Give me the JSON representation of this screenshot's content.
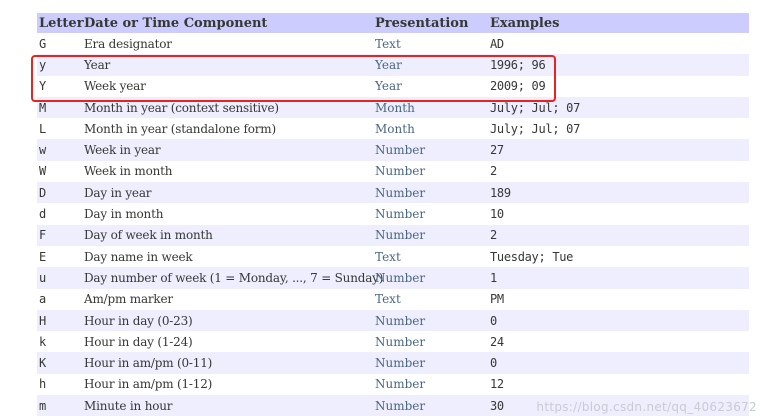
{
  "table": {
    "headers": [
      "Letter",
      "Date or Time Component",
      "Presentation",
      "Examples"
    ],
    "rows": [
      {
        "letter": "G",
        "component": "Era designator",
        "presentation": "Text",
        "examples": "AD"
      },
      {
        "letter": "y",
        "component": "Year",
        "presentation": "Year",
        "examples": "1996; 96"
      },
      {
        "letter": "Y",
        "component": "Week year",
        "presentation": "Year",
        "examples": "2009; 09"
      },
      {
        "letter": "M",
        "component": "Month in year (context sensitive)",
        "presentation": "Month",
        "examples": "July; Jul; 07"
      },
      {
        "letter": "L",
        "component": "Month in year (standalone form)",
        "presentation": "Month",
        "examples": "July; Jul; 07"
      },
      {
        "letter": "w",
        "component": "Week in year",
        "presentation": "Number",
        "examples": "27"
      },
      {
        "letter": "W",
        "component": "Week in month",
        "presentation": "Number",
        "examples": "2"
      },
      {
        "letter": "D",
        "component": "Day in year",
        "presentation": "Number",
        "examples": "189"
      },
      {
        "letter": "d",
        "component": "Day in month",
        "presentation": "Number",
        "examples": "10"
      },
      {
        "letter": "F",
        "component": "Day of week in month",
        "presentation": "Number",
        "examples": "2"
      },
      {
        "letter": "E",
        "component": "Day name in week",
        "presentation": "Text",
        "examples": "Tuesday; Tue"
      },
      {
        "letter": "u",
        "component": "Day number of week (1 = Monday, ..., 7 = Sunday)",
        "presentation": "Number",
        "examples": "1"
      },
      {
        "letter": "a",
        "component": "Am/pm marker",
        "presentation": "Text",
        "examples": "PM"
      },
      {
        "letter": "H",
        "component": "Hour in day (0-23)",
        "presentation": "Number",
        "examples": "0"
      },
      {
        "letter": "k",
        "component": "Hour in day (1-24)",
        "presentation": "Number",
        "examples": "24"
      },
      {
        "letter": "K",
        "component": "Hour in am/pm (0-11)",
        "presentation": "Number",
        "examples": "0"
      },
      {
        "letter": "h",
        "component": "Hour in am/pm (1-12)",
        "presentation": "Number",
        "examples": "12"
      },
      {
        "letter": "m",
        "component": "Minute in hour",
        "presentation": "Number",
        "examples": "30"
      }
    ]
  },
  "highlight": {
    "color": "#e8241e",
    "rows": [
      "y",
      "Y"
    ]
  },
  "colors": {
    "header_bg": "#ccccff",
    "alt_row_bg": "#eeeeff",
    "presentation_text": "#4a6782"
  },
  "watermark": "https://blog.csdn.net/qq_40623672"
}
